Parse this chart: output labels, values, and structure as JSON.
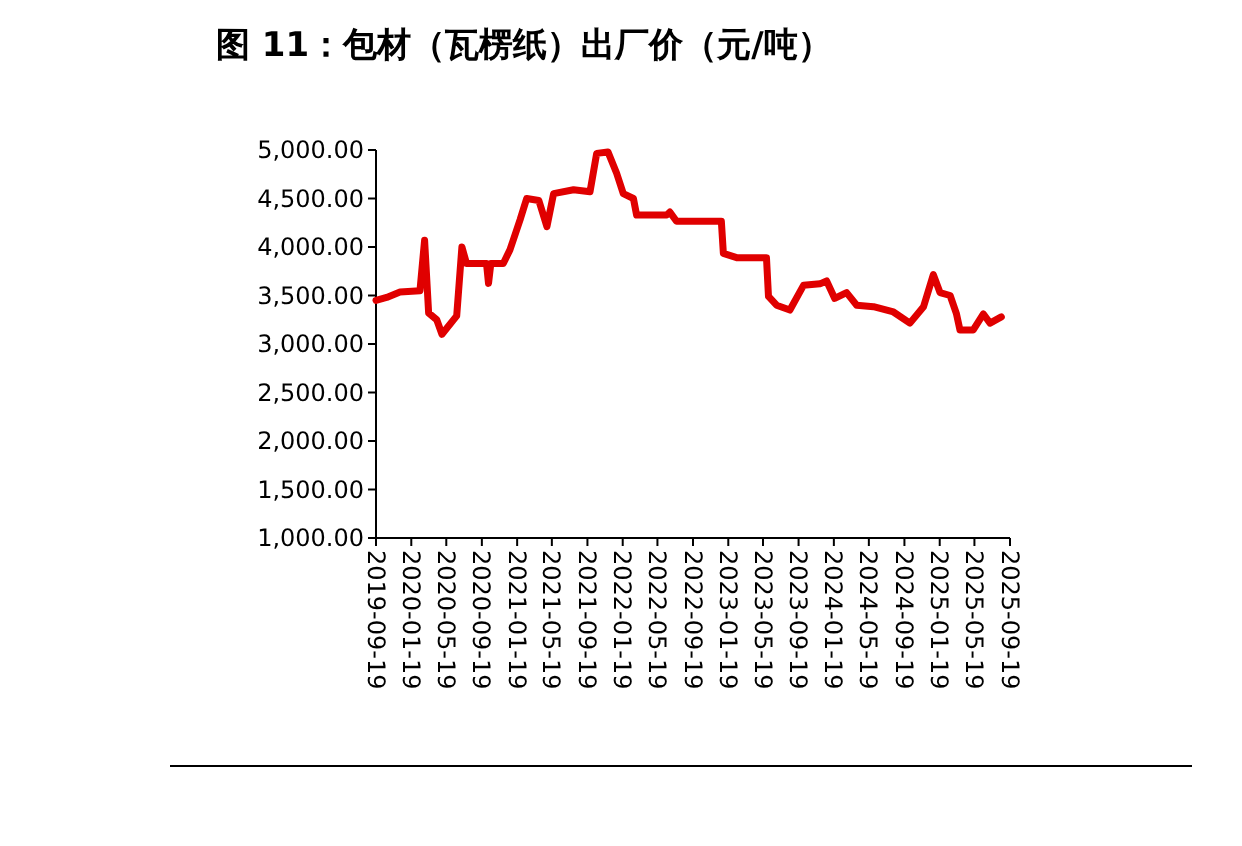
{
  "chart_data": {
    "type": "line",
    "title": "图 11：包材（瓦楞纸）出厂价（元/吨）",
    "series": [
      {
        "color": "#e00000",
        "x": [
          "2019-09-19",
          "2019-10-26",
          "2019-12-11",
          "2020-02-18",
          "2020-03-05",
          "2020-03-19",
          "2020-04-16",
          "2020-05-04",
          "2020-06-24",
          "2020-07-12",
          "2020-07-28",
          "2020-10-05",
          "2020-10-12",
          "2020-10-20",
          "2020-12-02",
          "2020-12-25",
          "2021-01-29",
          "2021-02-21",
          "2021-04-04",
          "2021-05-02",
          "2021-05-25",
          "2021-08-02",
          "2021-09-28",
          "2021-10-21",
          "2021-11-29",
          "2021-12-29",
          "2022-01-21",
          "2022-02-25",
          "2022-03-08",
          "2022-06-20",
          "2022-07-01",
          "2022-07-24",
          "2022-12-26",
          "2023-01-02",
          "2023-02-17",
          "2023-05-31",
          "2023-06-07",
          "2023-07-05",
          "2023-08-20",
          "2023-10-06",
          "2023-12-02",
          "2023-12-25",
          "2024-01-22",
          "2024-03-03",
          "2024-04-07",
          "2024-06-04",
          "2024-08-12",
          "2024-10-08",
          "2024-11-24",
          "2024-12-28",
          "2025-01-20",
          "2025-02-24",
          "2025-03-18",
          "2025-03-30",
          "2025-05-15",
          "2025-06-19",
          "2025-07-12",
          "2025-08-20"
        ],
        "values": [
          3450,
          3480,
          3535,
          3550,
          4070,
          3320,
          3250,
          3100,
          3290,
          4000,
          3830,
          3830,
          3625,
          3830,
          3830,
          3970,
          4280,
          4500,
          4480,
          4210,
          4550,
          4590,
          4570,
          4965,
          4980,
          4760,
          4550,
          4500,
          4330,
          4330,
          4360,
          4265,
          4265,
          3935,
          3890,
          3890,
          3490,
          3400,
          3350,
          3605,
          3620,
          3650,
          3470,
          3530,
          3400,
          3385,
          3330,
          3215,
          3385,
          3715,
          3530,
          3500,
          3310,
          3145,
          3145,
          3310,
          3215,
          3280
        ]
      }
    ],
    "xlim": [
      "2019-09-19",
      "2025-09-19"
    ],
    "xticks": [
      "2019-09-19",
      "2020-01-19",
      "2020-05-19",
      "2020-09-19",
      "2021-01-19",
      "2021-05-19",
      "2021-09-19",
      "2022-01-19",
      "2022-05-19",
      "2022-09-19",
      "2023-01-19",
      "2023-05-19",
      "2023-09-19",
      "2024-01-19",
      "2024-05-19",
      "2024-09-19",
      "2025-01-19",
      "2025-05-19",
      "2025-09-19"
    ],
    "ylim": [
      1000,
      5000
    ],
    "yticks": [
      {
        "value": 1000,
        "label": "1,000.00"
      },
      {
        "value": 1500,
        "label": "1,500.00"
      },
      {
        "value": 2000,
        "label": "2,000.00"
      },
      {
        "value": 2500,
        "label": "2,500.00"
      },
      {
        "value": 3000,
        "label": "3,000.00"
      },
      {
        "value": 3500,
        "label": "3,500.00"
      },
      {
        "value": 4000,
        "label": "4,000.00"
      },
      {
        "value": 4500,
        "label": "4,500.00"
      },
      {
        "value": 5000,
        "label": "5,000.00"
      }
    ],
    "line_style": "solid",
    "marker": "none"
  }
}
